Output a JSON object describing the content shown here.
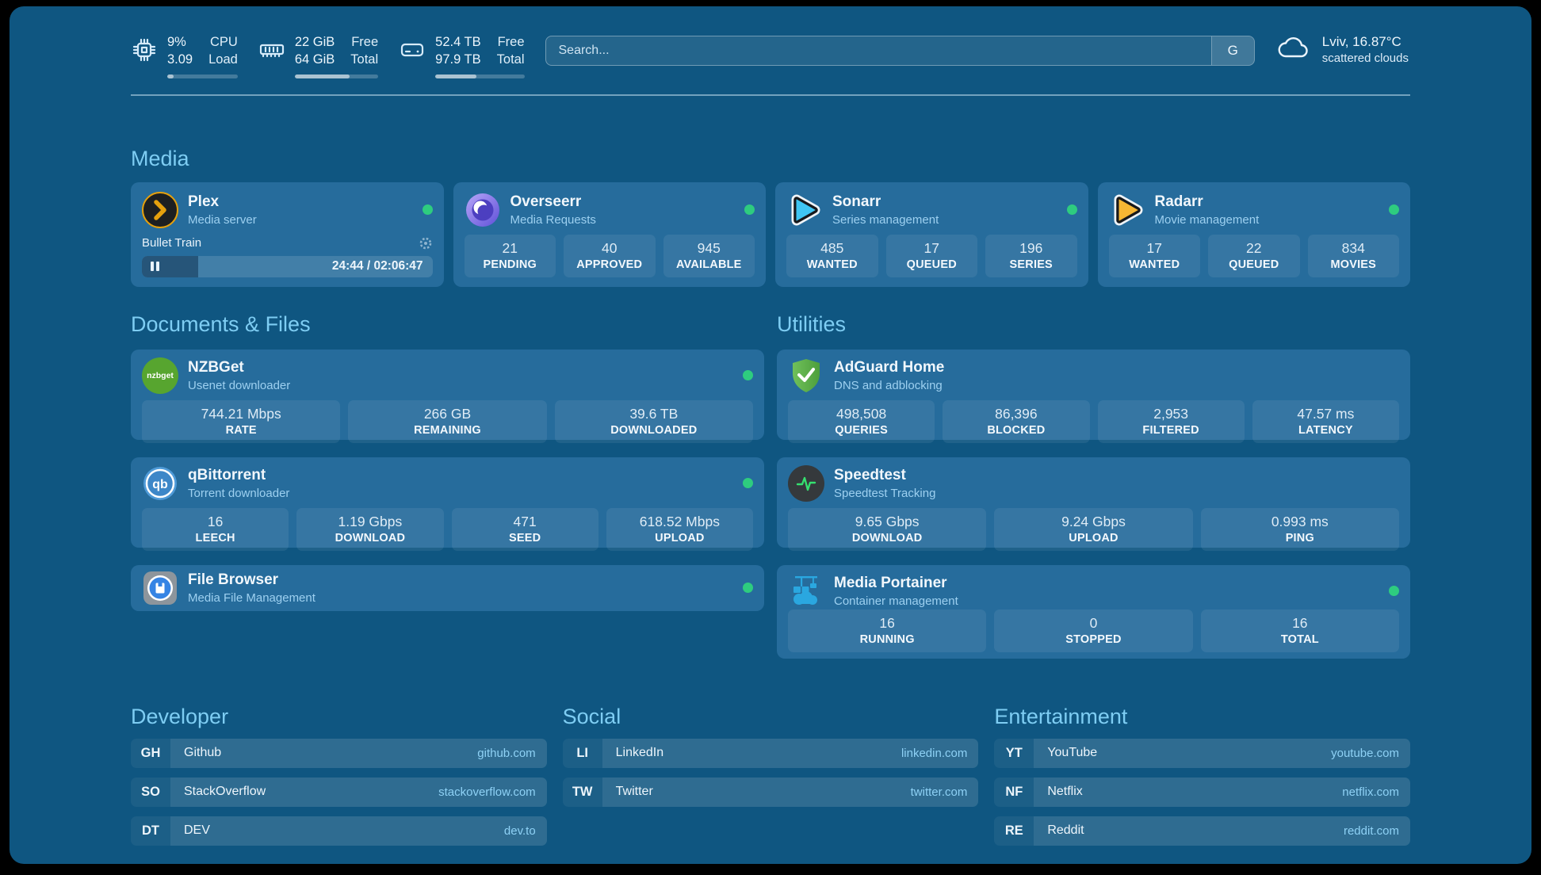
{
  "colors": {
    "background": "#0f5681",
    "card": "#266c9c",
    "accent_text": "#7ecdf3",
    "status_online": "#2ecc7f",
    "plex_orange": "#e5a00d",
    "sonarr_blue": "#3fc6f3",
    "radarr_yellow": "#f7b733"
  },
  "topbar": {
    "cpu": {
      "line1": "9%",
      "line2": "3.09",
      "label1": "CPU",
      "label2": "Load",
      "progress": 9
    },
    "ram": {
      "line1": "22 GiB",
      "line2": "64 GiB",
      "label1": "Free",
      "label2": "Total",
      "progress": 66
    },
    "disk": {
      "line1": "52.4 TB",
      "line2": "97.9 TB",
      "label1": "Free",
      "label2": "Total",
      "progress": 46
    },
    "search": {
      "placeholder": "Search...",
      "button": "G"
    },
    "weather": {
      "title": "Lviv, 16.87°C",
      "subtitle": "scattered clouds"
    }
  },
  "media": {
    "title": "Media",
    "plex": {
      "name": "Plex",
      "subtitle": "Media server",
      "online": true,
      "now_playing": "Bullet Train",
      "time": "24:44 / 02:06:47",
      "progress": 19.5
    },
    "overseerr": {
      "name": "Overseerr",
      "subtitle": "Media Requests",
      "online": true,
      "stats": [
        {
          "value": "21",
          "label": "PENDING"
        },
        {
          "value": "40",
          "label": "APPROVED"
        },
        {
          "value": "945",
          "label": "AVAILABLE"
        }
      ]
    },
    "sonarr": {
      "name": "Sonarr",
      "subtitle": "Series management",
      "online": true,
      "stats": [
        {
          "value": "485",
          "label": "WANTED"
        },
        {
          "value": "17",
          "label": "QUEUED"
        },
        {
          "value": "196",
          "label": "SERIES"
        }
      ]
    },
    "radarr": {
      "name": "Radarr",
      "subtitle": "Movie management",
      "online": true,
      "stats": [
        {
          "value": "17",
          "label": "WANTED"
        },
        {
          "value": "22",
          "label": "QUEUED"
        },
        {
          "value": "834",
          "label": "MOVIES"
        }
      ]
    }
  },
  "documents": {
    "title": "Documents & Files",
    "nzbget": {
      "name": "NZBGet",
      "subtitle": "Usenet downloader",
      "online": true,
      "icon_text": "nzbget",
      "stats": [
        {
          "value": "744.21 Mbps",
          "label": "RATE"
        },
        {
          "value": "266 GB",
          "label": "REMAINING"
        },
        {
          "value": "39.6 TB",
          "label": "DOWNLOADED"
        }
      ]
    },
    "qbittorrent": {
      "name": "qBittorrent",
      "subtitle": "Torrent downloader",
      "online": true,
      "icon_text": "qb",
      "stats": [
        {
          "value": "16",
          "label": "LEECH"
        },
        {
          "value": "1.19 Gbps",
          "label": "DOWNLOAD"
        },
        {
          "value": "471",
          "label": "SEED"
        },
        {
          "value": "618.52 Mbps",
          "label": "UPLOAD"
        }
      ]
    },
    "filebrowser": {
      "name": "File Browser",
      "subtitle": "Media File Management",
      "online": true
    }
  },
  "utilities": {
    "title": "Utilities",
    "adguard": {
      "name": "AdGuard Home",
      "subtitle": "DNS and adblocking",
      "stats": [
        {
          "value": "498,508",
          "label": "QUERIES"
        },
        {
          "value": "86,396",
          "label": "BLOCKED"
        },
        {
          "value": "2,953",
          "label": "FILTERED"
        },
        {
          "value": "47.57 ms",
          "label": "LATENCY"
        }
      ]
    },
    "speedtest": {
      "name": "Speedtest",
      "subtitle": "Speedtest Tracking",
      "stats": [
        {
          "value": "9.65 Gbps",
          "label": "DOWNLOAD"
        },
        {
          "value": "9.24 Gbps",
          "label": "UPLOAD"
        },
        {
          "value": "0.993 ms",
          "label": "PING"
        }
      ]
    },
    "portainer": {
      "name": "Media Portainer",
      "subtitle": "Container management",
      "online": true,
      "stats": [
        {
          "value": "16",
          "label": "RUNNING"
        },
        {
          "value": "0",
          "label": "STOPPED"
        },
        {
          "value": "16",
          "label": "TOTAL"
        }
      ]
    }
  },
  "links": {
    "developer": {
      "title": "Developer",
      "items": [
        {
          "abbr": "GH",
          "name": "Github",
          "url": "github.com"
        },
        {
          "abbr": "SO",
          "name": "StackOverflow",
          "url": "stackoverflow.com"
        },
        {
          "abbr": "DT",
          "name": "DEV",
          "url": "dev.to"
        }
      ]
    },
    "social": {
      "title": "Social",
      "items": [
        {
          "abbr": "LI",
          "name": "LinkedIn",
          "url": "linkedin.com"
        },
        {
          "abbr": "TW",
          "name": "Twitter",
          "url": "twitter.com"
        }
      ]
    },
    "entertainment": {
      "title": "Entertainment",
      "items": [
        {
          "abbr": "YT",
          "name": "YouTube",
          "url": "youtube.com"
        },
        {
          "abbr": "NF",
          "name": "Netflix",
          "url": "netflix.com"
        },
        {
          "abbr": "RE",
          "name": "Reddit",
          "url": "reddit.com"
        }
      ]
    }
  }
}
